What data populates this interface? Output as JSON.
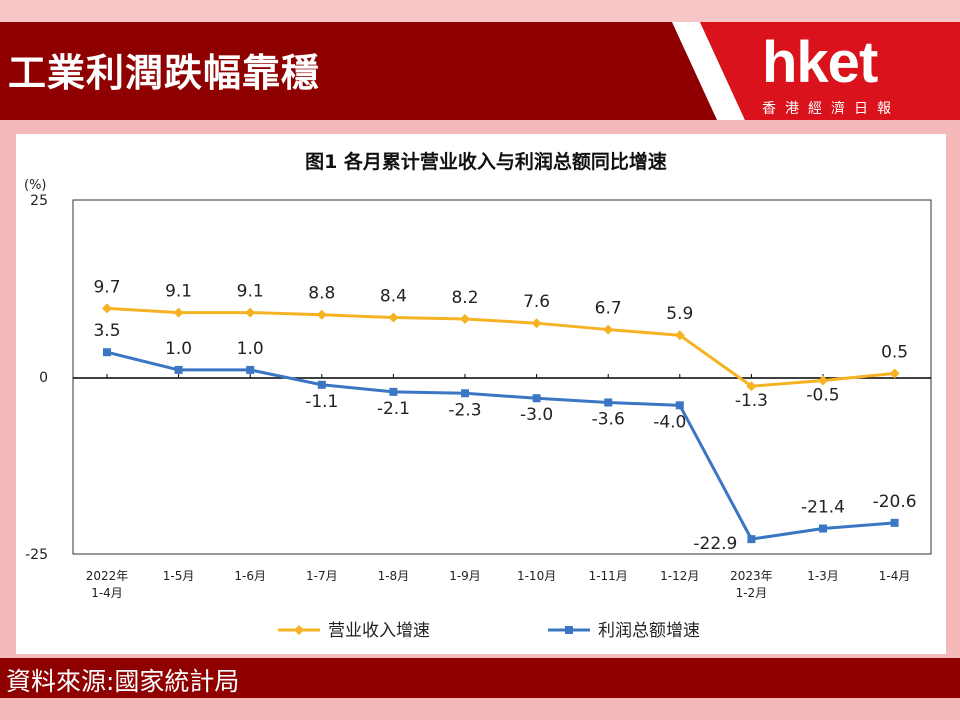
{
  "header": {
    "title": "工業利潤跌幅靠穩"
  },
  "logo": {
    "brand": "hket",
    "subtitle": "香港經濟日報"
  },
  "footer": {
    "source": "資料來源:國家統計局"
  },
  "colors": {
    "revenue": "#f5b324",
    "profit": "#3a76c4",
    "header_bg": "#8f0000"
  },
  "chart_data": {
    "type": "line",
    "title": "图1  各月累计营业收入与利润总额同比增速",
    "ylabel": "(%)",
    "ylim": [
      -25,
      25
    ],
    "yticks": [
      "25",
      "0",
      "-25"
    ],
    "categories": [
      "2022年\n1-4月",
      "1-5月",
      "1-6月",
      "1-7月",
      "1-8月",
      "1-9月",
      "1-10月",
      "1-11月",
      "1-12月",
      "2023年\n1-2月",
      "1-3月",
      "1-4月"
    ],
    "series": [
      {
        "name": "营业收入增速",
        "values": [
          9.7,
          9.1,
          9.1,
          8.8,
          8.4,
          8.2,
          7.6,
          6.7,
          5.9,
          -1.3,
          -0.5,
          0.5
        ],
        "labels": [
          "9.7",
          "9.1",
          "9.1",
          "8.8",
          "8.4",
          "8.2",
          "7.6",
          "6.7",
          "5.9",
          "-1.3",
          "-0.5",
          "0.5"
        ]
      },
      {
        "name": "利润总额增速",
        "values": [
          3.5,
          1.0,
          1.0,
          -1.1,
          -2.1,
          -2.3,
          -3.0,
          -3.6,
          -4.0,
          -22.9,
          -21.4,
          -20.6
        ],
        "labels": [
          "3.5",
          "1.0",
          "1.0",
          "-1.1",
          "-2.1",
          "-2.3",
          "-3.0",
          "-3.6",
          "-4.0",
          "-22.9",
          "-21.4",
          "-20.6"
        ]
      }
    ],
    "legend": "bottom-center",
    "grid": false
  }
}
